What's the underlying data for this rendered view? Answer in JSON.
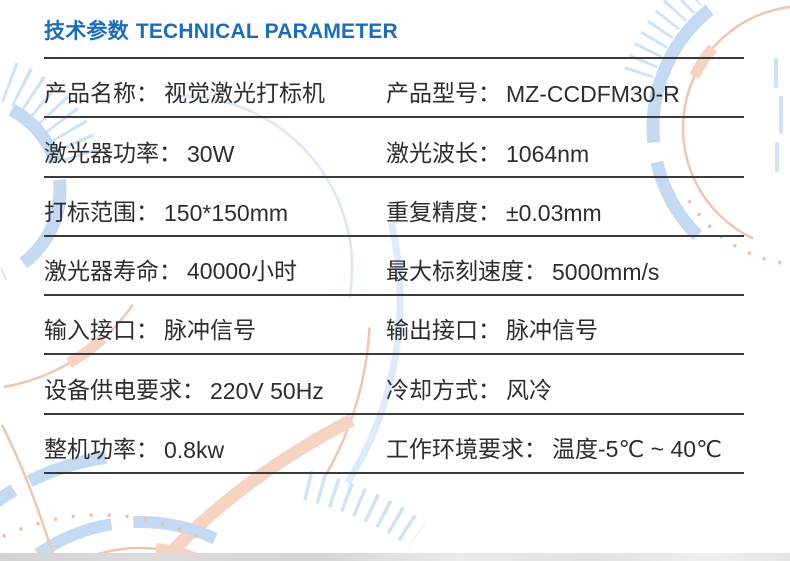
{
  "header": {
    "title_zh": "技术参数",
    "title_en": "TECHNICAL PARAMETER",
    "title_color": "#1a6eb5"
  },
  "table": {
    "rows": [
      {
        "left": {
          "label": "产品名称：",
          "value": "视觉激光打标机"
        },
        "right": {
          "label": "产品型号：",
          "value": "MZ-CCDFM30-R"
        }
      },
      {
        "left": {
          "label": "激光器功率：",
          "value": "30W"
        },
        "right": {
          "label": "激光波长：",
          "value": "1064nm"
        }
      },
      {
        "left": {
          "label": "打标范围：",
          "value": "150*150mm"
        },
        "right": {
          "label": "重复精度：",
          "value": "±0.03mm"
        }
      },
      {
        "left": {
          "label": "激光器寿命：",
          "value": "40000小时"
        },
        "right": {
          "label": "最大标刻速度：",
          "value": "5000mm/s"
        }
      },
      {
        "left": {
          "label": "输入接口：",
          "value": "脉冲信号"
        },
        "right": {
          "label": "输出接口：",
          "value": "脉冲信号"
        }
      },
      {
        "left": {
          "label": "设备供电要求：",
          "value": "220V 50Hz"
        },
        "right": {
          "label": "冷却方式：",
          "value": "风冷"
        }
      },
      {
        "left": {
          "label": "整机功率：",
          "value": "0.8kw"
        },
        "right": {
          "label": "工作环境要求：",
          "value": "温度-5℃ ~ 40℃"
        }
      }
    ]
  },
  "colors": {
    "text": "#2d2d2d",
    "rule_line": "#3b3b3b",
    "deco_blue": "#c3daf2",
    "deco_blue_ticks": "#cfe3f7",
    "deco_orange": "#f2c5b2",
    "deco_orange_thick": "#f7d3c3",
    "bottom_strip": "#dcdcdc"
  }
}
